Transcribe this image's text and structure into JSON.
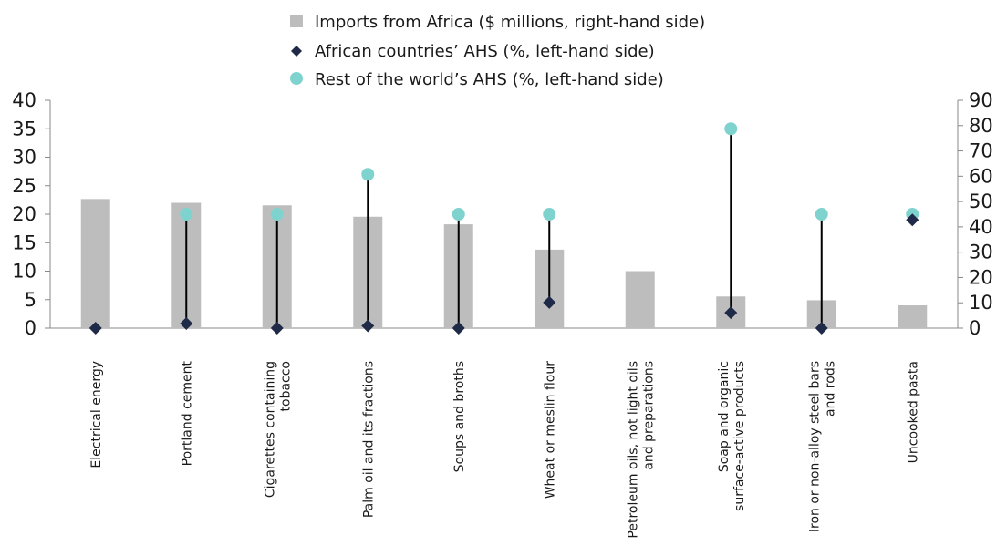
{
  "chart_data": {
    "type": "bar",
    "categories": [
      [
        "Electrical energy"
      ],
      [
        "Portland cement"
      ],
      [
        "Cigarettes containing",
        "tobacco"
      ],
      [
        "Palm oil and its fractions"
      ],
      [
        "Soups and broths"
      ],
      [
        "Wheat or meslin flour"
      ],
      [
        "Petroleum oils, not light oils",
        "and preparations"
      ],
      [
        "Soap and organic",
        "surface-active products"
      ],
      [
        "Iron or non-alloy steel bars",
        "and rods"
      ],
      [
        "Uncooked pasta"
      ]
    ],
    "series": [
      {
        "name": "Imports from Africa ($ millions, right-hand side)",
        "type": "bar",
        "axis": "right",
        "color": "#bdbdbd",
        "values": [
          51,
          49.5,
          48.5,
          44,
          41,
          31,
          22.5,
          12.5,
          11,
          9
        ]
      },
      {
        "name": "African countries’ AHS (%, left-hand side)",
        "type": "marker",
        "marker": "diamond",
        "axis": "left",
        "color": "#1e2a47",
        "values": [
          0,
          0.8,
          0,
          0.4,
          0,
          4.5,
          null,
          2.7,
          0,
          19
        ]
      },
      {
        "name": "Rest of the world’s AHS (%, left-hand side)",
        "type": "marker",
        "marker": "circle",
        "axis": "left",
        "color": "#7fd3cf",
        "values": [
          null,
          20,
          20,
          27,
          20,
          20,
          null,
          35,
          20,
          20
        ]
      }
    ],
    "y_left": {
      "ticks": [
        "0",
        "5",
        "10",
        "15",
        "20",
        "25",
        "30",
        "35",
        "40"
      ],
      "range": [
        0,
        40
      ]
    },
    "y_right": {
      "ticks": [
        "0",
        "10",
        "20",
        "30",
        "40",
        "50",
        "60",
        "70",
        "80",
        "90"
      ],
      "range": [
        0,
        90
      ]
    },
    "connector_color": "#000000",
    "legend_position": "top-center",
    "grid": false
  }
}
